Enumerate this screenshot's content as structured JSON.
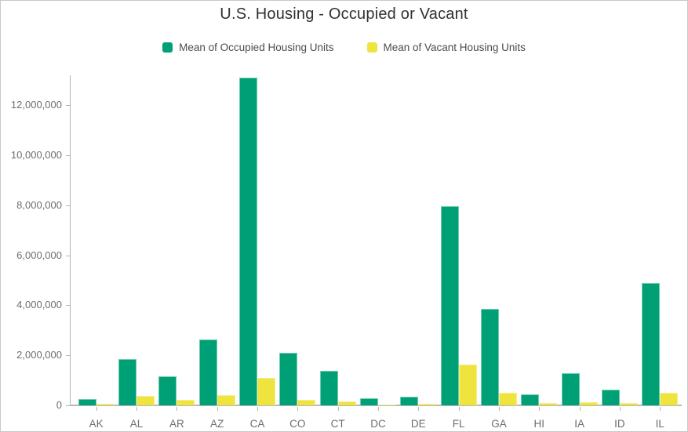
{
  "title": "U.S. Housing - Occupied or Vacant",
  "legend": [
    {
      "label": "Mean of Occupied Housing Units",
      "color": "#00a076"
    },
    {
      "label": "Mean of Vacant Housing Units",
      "color": "#efe43e"
    }
  ],
  "colors": {
    "occupied_bar": "#00a076",
    "vacant_bar": "#efe43e",
    "axis_line": "#b3b3b3",
    "tick_label": "#6e6e6e",
    "title_text": "#323232",
    "legend_text": "#4c4c4c",
    "card_border": "#c9c9c9"
  },
  "chart_data": {
    "type": "bar",
    "title": "U.S. Housing - Occupied or Vacant",
    "xlabel": "",
    "ylabel": "",
    "grid": false,
    "legend_position": "top",
    "ylim": [
      0,
      13200000
    ],
    "y_ticks": [
      0,
      2000000,
      4000000,
      6000000,
      8000000,
      10000000,
      12000000
    ],
    "categories": [
      "AK",
      "AL",
      "AR",
      "AZ",
      "CA",
      "CO",
      "CT",
      "DC",
      "DE",
      "FL",
      "GA",
      "HI",
      "IA",
      "ID",
      "IL"
    ],
    "series": [
      {
        "name": "Mean of Occupied Housing Units",
        "color": "#00a076",
        "values": [
          250000,
          1860000,
          1170000,
          2620000,
          13100000,
          2110000,
          1380000,
          270000,
          350000,
          7950000,
          3850000,
          450000,
          1270000,
          640000,
          4900000
        ]
      },
      {
        "name": "Mean of Vacant Housing Units",
        "color": "#efe43e",
        "values": [
          60000,
          390000,
          210000,
          410000,
          1100000,
          230000,
          150000,
          30000,
          60000,
          1620000,
          490000,
          80000,
          140000,
          90000,
          490000
        ]
      }
    ]
  }
}
